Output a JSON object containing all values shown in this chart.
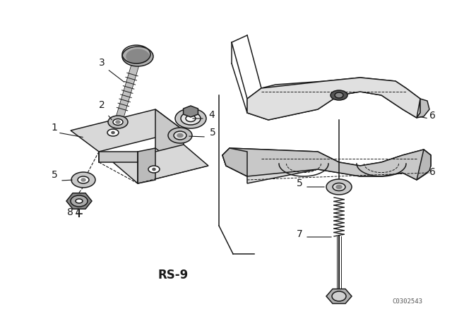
{
  "bg_color": "#ffffff",
  "line_color": "#1a1a1a",
  "title": "RS-9",
  "watermark": "C0302543",
  "fig_width": 6.4,
  "fig_height": 4.48,
  "dpi": 100
}
